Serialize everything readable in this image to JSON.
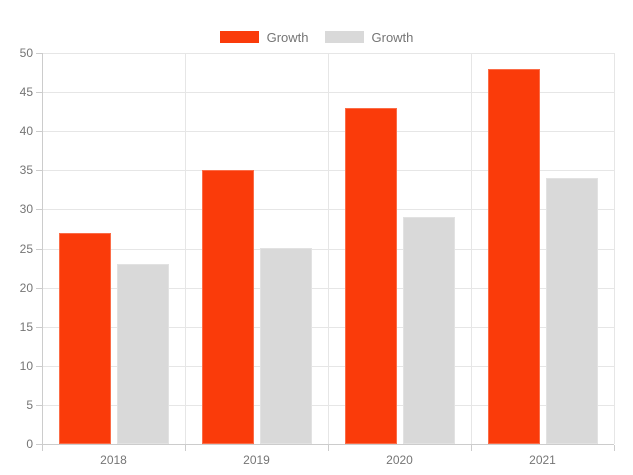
{
  "chart_data": {
    "type": "bar",
    "title": "",
    "xlabel": "",
    "ylabel": "",
    "categories": [
      "2018",
      "2019",
      "2020",
      "2021"
    ],
    "series": [
      {
        "name": "Growth",
        "color": "#fa3b0a",
        "values": [
          27,
          35,
          43,
          48
        ]
      },
      {
        "name": "Growth",
        "color": "#d9d9d9",
        "values": [
          23,
          25,
          29,
          34
        ]
      }
    ],
    "ylim": [
      0,
      50
    ],
    "yticks": [
      0,
      5,
      10,
      15,
      20,
      25,
      30,
      35,
      40,
      45,
      50
    ],
    "grid": true,
    "legend_position": "top"
  },
  "colors": {
    "series1": "#fa3b0a",
    "series2": "#d9d9d9",
    "gridline": "#e6e6e6",
    "axis": "#cccccc",
    "label_text": "#757575",
    "background": "#ffffff"
  }
}
